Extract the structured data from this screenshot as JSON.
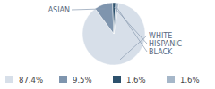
{
  "chart_data": {
    "type": "pie",
    "categories": [
      "WHITE",
      "ASIAN",
      "HISPANIC",
      "BLACK"
    ],
    "values": [
      87.4,
      9.5,
      1.6,
      1.6
    ],
    "value_labels": [
      "87.4%",
      "9.5%",
      "1.6%",
      "1.6%"
    ],
    "colors": [
      "#d7dfe9",
      "#7f95ae",
      "#2d516d",
      "#a6b7c9"
    ],
    "legend": "bottom"
  }
}
